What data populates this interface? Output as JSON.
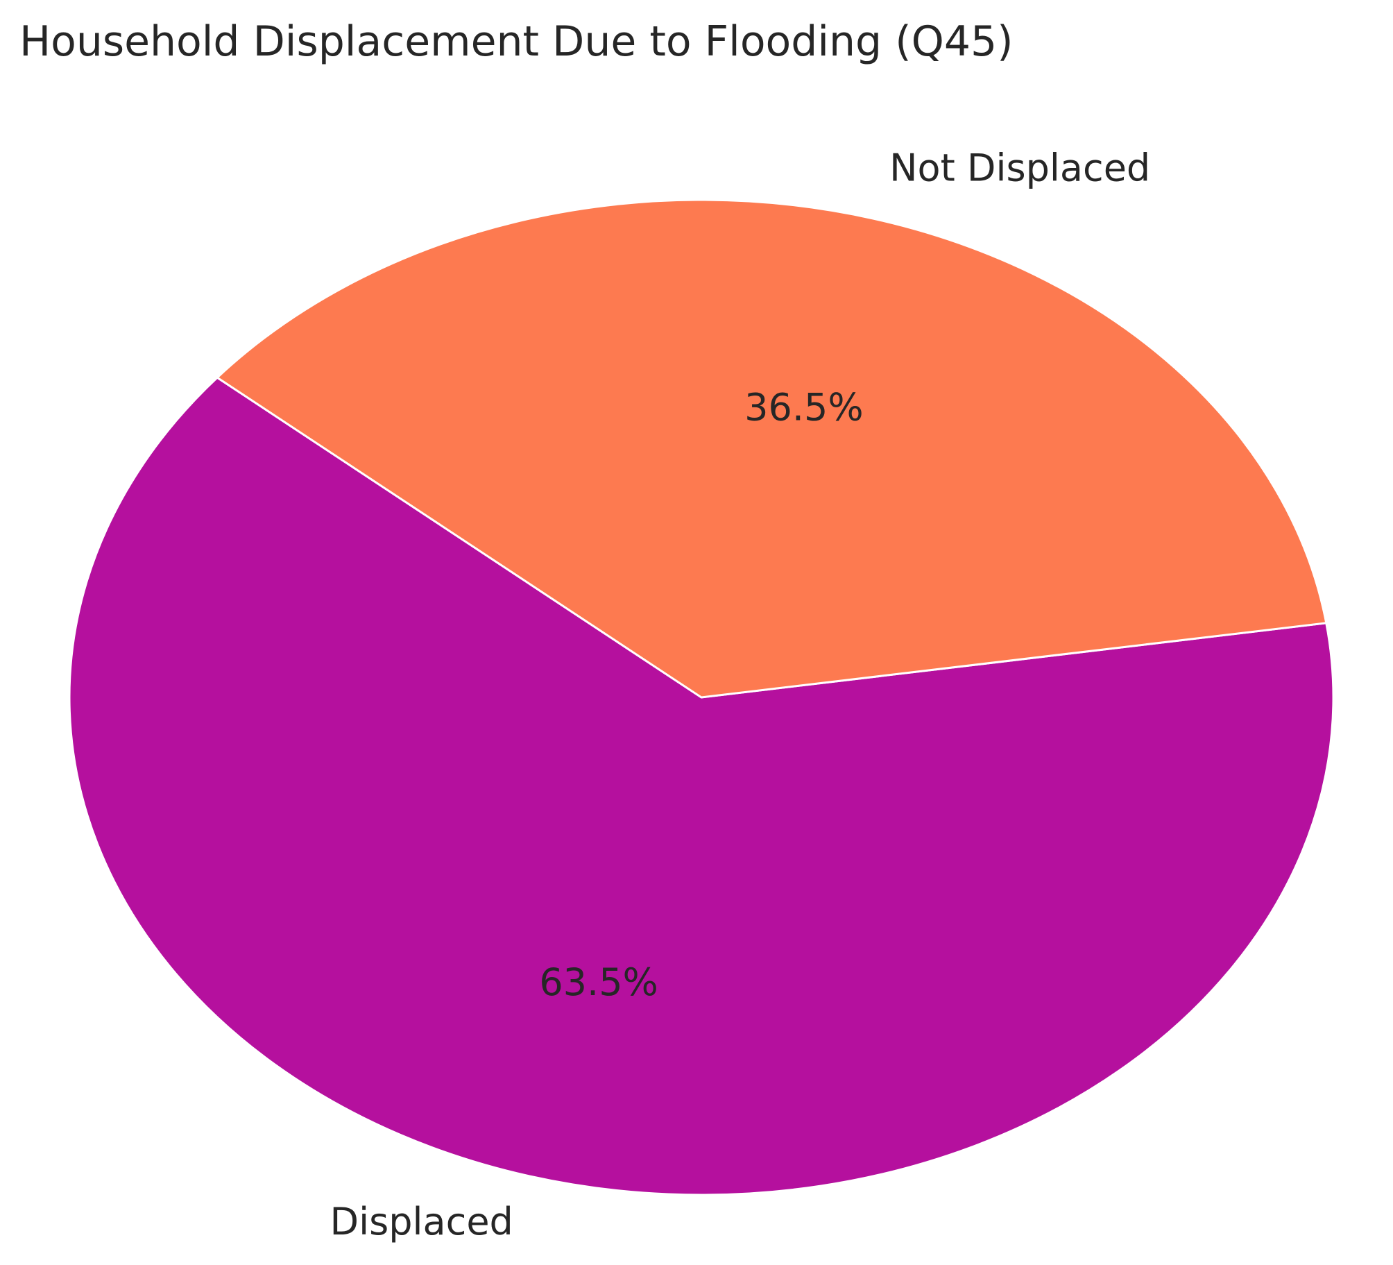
{
  "chart_data": {
    "type": "pie",
    "title": "Household Displacement Due to Flooding (Q45)",
    "categories": [
      "Displaced",
      "Not Displaced"
    ],
    "values": [
      63.5,
      36.5
    ],
    "value_labels": [
      "63.5%",
      "36.5%"
    ],
    "colors": [
      "#b5109e",
      "#fd7a50"
    ],
    "startangle": 140
  }
}
